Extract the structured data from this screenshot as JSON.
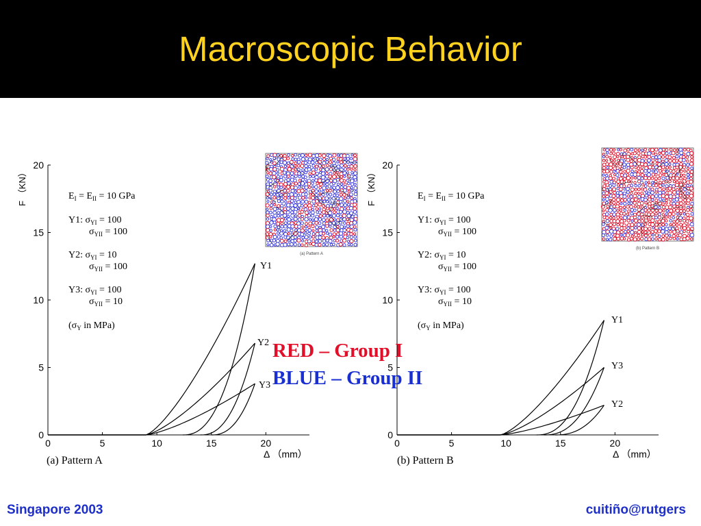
{
  "slide": {
    "title": "Macroscopic Behavior",
    "footer_left": "Singapore 2003",
    "footer_right": "cuitiño@rutgers"
  },
  "legend_overlay": [
    {
      "text": "RED – Group I",
      "color": "#E0102A"
    },
    {
      "text": "BLUE – Group II",
      "color": "#1A2FD0"
    }
  ],
  "annotations": {
    "modulus": "E",
    "modulus_sub1": "I",
    "modulus_mid": " = E",
    "modulus_sub2": "II",
    "modulus_value": " = 10 GPa",
    "sigma": "σ",
    "sub_YI": "YI",
    "sub_YII": "YII",
    "sub_Y": "Y",
    "eq": " = ",
    "units_note_open": "(",
    "units_note_close": " in MPa)",
    "cases": [
      {
        "label": "Y1:",
        "sigma_YI": "100",
        "sigma_YII": "100"
      },
      {
        "label": "Y2:",
        "sigma_YI": "10",
        "sigma_YII": "100"
      },
      {
        "label": "Y3:",
        "sigma_YI": "100",
        "sigma_YII": "10"
      }
    ]
  },
  "chart_data": [
    {
      "type": "line",
      "caption": "(a) Pattern A",
      "ylabel": "F （KN）",
      "xlabel": "Δ （mm）",
      "xlim": [
        0,
        24
      ],
      "ylim": [
        0,
        20
      ],
      "xticks": [
        0,
        5,
        10,
        15,
        20
      ],
      "yticks": [
        0,
        5,
        10,
        15,
        20
      ],
      "inset_caption": "(a) Pattern A",
      "inset_colors": {
        "group_I": "#E0102A",
        "group_II": "#3A3AE0"
      },
      "series": [
        {
          "name": "Y1",
          "load_start": 9.0,
          "peak": [
            19.0,
            12.7
          ],
          "unload_end": 12.4
        },
        {
          "name": "Y2",
          "load_start": 9.0,
          "peak": [
            19.0,
            6.8
          ],
          "unload_end": 14.0
        },
        {
          "name": "Y3",
          "load_start": 9.0,
          "peak": [
            19.0,
            3.8
          ],
          "unload_end": 15.0
        }
      ]
    },
    {
      "type": "line",
      "caption": "(b) Pattern B",
      "ylabel": "F （KN）",
      "xlabel": "Δ （mm）",
      "xlim": [
        0,
        24
      ],
      "ylim": [
        0,
        20
      ],
      "xticks": [
        0,
        5,
        10,
        15,
        20
      ],
      "yticks": [
        0,
        5,
        10,
        15,
        20
      ],
      "inset_caption": "(b) Pattern B",
      "inset_colors": {
        "group_I": "#E0102A",
        "group_II": "#3A3AE0"
      },
      "series": [
        {
          "name": "Y1",
          "load_start": 9.5,
          "peak": [
            19.0,
            8.5
          ],
          "unload_end": 12.8
        },
        {
          "name": "Y3",
          "load_start": 9.5,
          "peak": [
            19.0,
            5.0
          ],
          "unload_end": 13.5
        },
        {
          "name": "Y2",
          "load_start": 9.5,
          "peak": [
            19.0,
            2.2
          ],
          "unload_end": 14.5
        }
      ]
    }
  ]
}
